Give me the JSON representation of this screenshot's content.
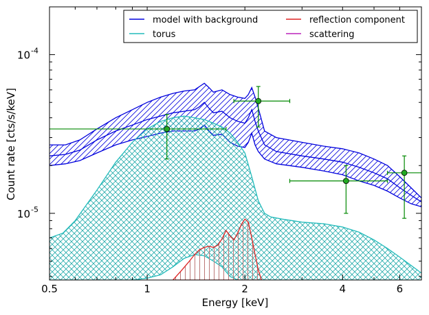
{
  "chart_data": {
    "type": "line",
    "xlabel": "Energy [keV]",
    "ylabel": "Count rate [cts/s/keV]",
    "xscale": "log",
    "yscale": "log",
    "xlim": [
      0.5,
      7.0
    ],
    "ylim": [
      3.8e-06,
      0.0002
    ],
    "x_ticks": [
      {
        "value": 0.5,
        "label": "0.5"
      },
      {
        "value": 1,
        "label": "1"
      },
      {
        "value": 2,
        "label": "2"
      },
      {
        "value": 4,
        "label": "4"
      },
      {
        "value": 6,
        "label": "6"
      }
    ],
    "y_ticks": [
      {
        "value": 0.0001,
        "label": "10",
        "exp": "-4"
      },
      {
        "value": 1e-05,
        "label": "10",
        "exp": "-5"
      }
    ],
    "legend": {
      "placement": "top-right",
      "entries": [
        {
          "label": "model with background",
          "color": "#0000dd"
        },
        {
          "label": "reflection component",
          "color": "#dd2222"
        },
        {
          "label": "torus",
          "color": "#22bbbb"
        },
        {
          "label": "scattering",
          "color": "#bb22bb"
        }
      ]
    },
    "bands": [
      {
        "name": "model with background",
        "color": "#0000dd",
        "hatch": "diagonal",
        "x": [
          0.5,
          0.56,
          0.62,
          0.7,
          0.8,
          0.9,
          1.0,
          1.1,
          1.2,
          1.3,
          1.4,
          1.45,
          1.5,
          1.55,
          1.6,
          1.7,
          1.8,
          1.9,
          2.0,
          2.05,
          2.1,
          2.15,
          2.2,
          2.3,
          2.5,
          3.0,
          3.5,
          4.0,
          4.5,
          5.0,
          5.5,
          6.0,
          6.5,
          7.0
        ],
        "upper": [
          2.7e-05,
          2.7e-05,
          2.9e-05,
          3.4e-05,
          4e-05,
          4.5e-05,
          5e-05,
          5.4e-05,
          5.7e-05,
          5.9e-05,
          6e-05,
          6.3e-05,
          6.6e-05,
          6.2e-05,
          5.8e-05,
          6e-05,
          5.6e-05,
          5.4e-05,
          5.3e-05,
          5.6e-05,
          6.2e-05,
          5.4e-05,
          4.6e-05,
          3.3e-05,
          3e-05,
          2.8e-05,
          2.65e-05,
          2.55e-05,
          2.4e-05,
          2.2e-05,
          2e-05,
          1.7e-05,
          1.45e-05,
          1.25e-05
        ],
        "lower": [
          2e-05,
          2.05e-05,
          2.15e-05,
          2.4e-05,
          2.7e-05,
          2.9e-05,
          3.05e-05,
          3.2e-05,
          3.3e-05,
          3.3e-05,
          3.3e-05,
          3.4e-05,
          3.6e-05,
          3.3e-05,
          3.1e-05,
          3.15e-05,
          2.8e-05,
          2.65e-05,
          2.6e-05,
          2.8e-05,
          3.2e-05,
          2.7e-05,
          2.45e-05,
          2.2e-05,
          2.05e-05,
          1.95e-05,
          1.85e-05,
          1.75e-05,
          1.6e-05,
          1.5e-05,
          1.38e-05,
          1.25e-05,
          1.15e-05,
          1.1e-05
        ]
      },
      {
        "name": "torus",
        "color": "#22bbbb",
        "hatch": "cross",
        "x": [
          0.5,
          0.55,
          0.6,
          0.7,
          0.8,
          0.9,
          1.0,
          1.1,
          1.2,
          1.3,
          1.4,
          1.5,
          1.6,
          1.7,
          1.8,
          1.9,
          2.0,
          2.1,
          2.2,
          2.3,
          2.4,
          2.6,
          3.0,
          3.5,
          4.0,
          4.5,
          5.0,
          5.5,
          6.0,
          6.5,
          7.0
        ],
        "upper": [
          7e-06,
          7.5e-06,
          9e-06,
          1.4e-05,
          2.1e-05,
          2.8e-05,
          3.4e-05,
          3.8e-05,
          4e-05,
          4.1e-05,
          4e-05,
          3.9e-05,
          3.7e-05,
          3.5e-05,
          3.2e-05,
          2.8e-05,
          2.4e-05,
          1.7e-05,
          1.2e-05,
          1e-05,
          9.5e-06,
          9.2e-06,
          8.8e-06,
          8.6e-06,
          8.2e-06,
          7.6e-06,
          6.8e-06,
          6e-06,
          5.3e-06,
          4.7e-06,
          4.2e-06
        ],
        "lower": [
          3.8e-06,
          3.8e-06,
          3.8e-06,
          3.8e-06,
          3.8e-06,
          3.8e-06,
          3.9e-06,
          4.1e-06,
          4.6e-06,
          5.2e-06,
          5.5e-06,
          5.4e-06,
          5e-06,
          4.6e-06,
          4e-06,
          3.8e-06,
          3.8e-06,
          3.8e-06,
          3.8e-06,
          3.8e-06,
          3.8e-06,
          3.8e-06,
          3.8e-06,
          3.8e-06,
          3.8e-06,
          3.8e-06,
          3.8e-06,
          3.8e-06,
          3.8e-06,
          3.8e-06,
          3.8e-06
        ]
      },
      {
        "name": "reflection component",
        "color": "#dd2222",
        "hatch": "vertical",
        "x": [
          1.2,
          1.28,
          1.35,
          1.4,
          1.45,
          1.5,
          1.55,
          1.6,
          1.65,
          1.7,
          1.75,
          1.8,
          1.85,
          1.9,
          1.95,
          2.0,
          2.05,
          2.1,
          2.15,
          2.2,
          2.25
        ],
        "upper": [
          3.8e-06,
          4.4e-06,
          5e-06,
          5.5e-06,
          5.9e-06,
          6.1e-06,
          6.2e-06,
          6.1e-06,
          6.3e-06,
          6.9e-06,
          7.8e-06,
          7.2e-06,
          6.8e-06,
          7.5e-06,
          8.5e-06,
          9.2e-06,
          8.8e-06,
          7e-06,
          5.5e-06,
          4.4e-06,
          3.8e-06
        ],
        "lower": [
          3.8e-06,
          3.8e-06,
          3.8e-06,
          3.8e-06,
          3.8e-06,
          3.8e-06,
          3.8e-06,
          3.8e-06,
          3.8e-06,
          3.8e-06,
          3.8e-06,
          3.8e-06,
          3.8e-06,
          3.8e-06,
          3.8e-06,
          3.8e-06,
          3.8e-06,
          3.8e-06,
          3.8e-06,
          3.8e-06,
          3.8e-06
        ]
      }
    ],
    "lines": [
      {
        "name": "model with background",
        "color": "#0000dd",
        "x": [
          0.5,
          0.56,
          0.62,
          0.7,
          0.8,
          0.9,
          1.0,
          1.1,
          1.2,
          1.3,
          1.4,
          1.45,
          1.5,
          1.55,
          1.6,
          1.7,
          1.8,
          1.9,
          2.0,
          2.05,
          2.1,
          2.15,
          2.2,
          2.3,
          2.5,
          3.0,
          3.5,
          4.0,
          4.5,
          5.0,
          5.5,
          6.0,
          6.5,
          7.0
        ],
        "y": [
          2.3e-05,
          2.35e-05,
          2.5e-05,
          2.9e-05,
          3.3e-05,
          3.6e-05,
          3.9e-05,
          4.1e-05,
          4.3e-05,
          4.4e-05,
          4.5e-05,
          4.7e-05,
          5e-05,
          4.6e-05,
          4.3e-05,
          4.4e-05,
          4e-05,
          3.8e-05,
          3.7e-05,
          4e-05,
          4.5e-05,
          3.8e-05,
          3.3e-05,
          2.7e-05,
          2.45e-05,
          2.3e-05,
          2.2e-05,
          2.1e-05,
          1.95e-05,
          1.8e-05,
          1.65e-05,
          1.45e-05,
          1.3e-05,
          1.18e-05
        ]
      }
    ],
    "points": [
      {
        "x": 1.15,
        "y": 3.4e-05,
        "xerr": [
          0.5,
          1.75
        ],
        "yerr": [
          2.2e-05,
          4.2e-05
        ]
      },
      {
        "x": 2.2,
        "y": 5.1e-05,
        "xerr": [
          1.85,
          2.75
        ],
        "yerr": [
          3.5e-05,
          6.3e-05
        ]
      },
      {
        "x": 4.1,
        "y": 1.6e-05,
        "xerr": [
          2.75,
          5.5
        ],
        "yerr": [
          1e-05,
          2e-05
        ]
      },
      {
        "x": 6.2,
        "y": 1.8e-05,
        "xerr": [
          5.5,
          7.0
        ],
        "yerr": [
          9.3e-06,
          2.3e-05
        ]
      }
    ],
    "point_color": "#008800",
    "marker_fill": "#22aa22"
  }
}
